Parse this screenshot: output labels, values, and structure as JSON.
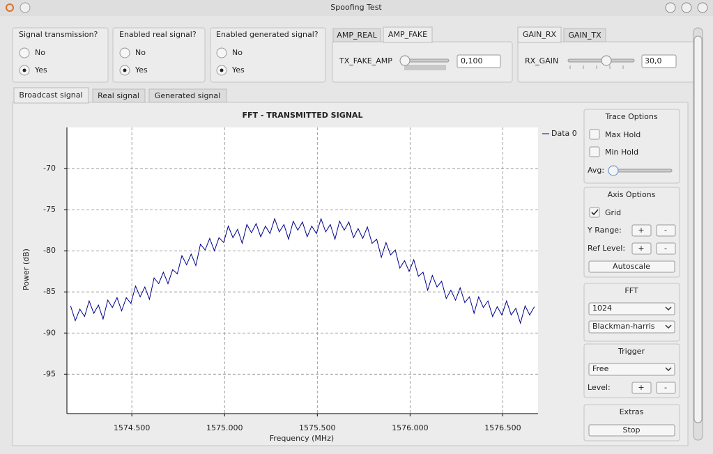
{
  "window": {
    "title": "Spoofing Test"
  },
  "groups": [
    {
      "title": "Signal transmission?",
      "options": [
        "No",
        "Yes"
      ],
      "selected": "Yes"
    },
    {
      "title": "Enabled real signal?",
      "options": [
        "No",
        "Yes"
      ],
      "selected": "Yes"
    },
    {
      "title": "Enabled generated signal?",
      "options": [
        "No",
        "Yes"
      ],
      "selected": "Yes"
    }
  ],
  "amp_tabs": {
    "tabs": [
      "AMP_REAL",
      "AMP_FAKE"
    ],
    "active": "AMP_FAKE",
    "label": "TX_FAKE_AMP",
    "value": "0,100"
  },
  "gain_tabs": {
    "tabs": [
      "GAIN_RX",
      "GAIN_TX"
    ],
    "active": "GAIN_RX",
    "label": "RX_GAIN",
    "value": "30,0"
  },
  "main_tabs": {
    "tabs": [
      "Broadcast signal",
      "Real signal",
      "Generated signal"
    ],
    "active": "Broadcast signal"
  },
  "side_panel": {
    "trace_options": {
      "title": "Trace Options",
      "max_hold": "Max Hold",
      "min_hold": "Min Hold",
      "avg": "Avg:"
    },
    "axis_options": {
      "title": "Axis Options",
      "grid": "Grid",
      "y_range": "Y Range:",
      "ref_level": "Ref Level:",
      "plus": "+",
      "minus": "-",
      "autoscale": "Autoscale"
    },
    "fft": {
      "title": "FFT",
      "size": "1024",
      "window": "Blackman-harris"
    },
    "trigger": {
      "title": "Trigger",
      "mode": "Free",
      "level": "Level:"
    },
    "extras": {
      "title": "Extras",
      "stop": "Stop"
    }
  },
  "chart_data": {
    "type": "line",
    "title": "FFT - TRANSMITTED SIGNAL",
    "x_label": "Frequency (MHz)",
    "y_label": "Power (dB)",
    "x": [
      1574.17,
      1574.195,
      1574.22,
      1574.245,
      1574.27,
      1574.295,
      1574.32,
      1574.345,
      1574.37,
      1574.395,
      1574.42,
      1574.445,
      1574.47,
      1574.495,
      1574.52,
      1574.545,
      1574.57,
      1574.595,
      1574.62,
      1574.645,
      1574.67,
      1574.695,
      1574.72,
      1574.745,
      1574.77,
      1574.795,
      1574.82,
      1574.845,
      1574.87,
      1574.895,
      1574.92,
      1574.945,
      1574.97,
      1574.995,
      1575.02,
      1575.045,
      1575.07,
      1575.095,
      1575.12,
      1575.145,
      1575.17,
      1575.195,
      1575.22,
      1575.245,
      1575.27,
      1575.295,
      1575.32,
      1575.345,
      1575.37,
      1575.395,
      1575.42,
      1575.445,
      1575.47,
      1575.495,
      1575.52,
      1575.545,
      1575.57,
      1575.595,
      1575.62,
      1575.645,
      1575.67,
      1575.695,
      1575.72,
      1575.745,
      1575.77,
      1575.795,
      1575.82,
      1575.845,
      1575.87,
      1575.895,
      1575.92,
      1575.945,
      1575.97,
      1575.995,
      1576.02,
      1576.045,
      1576.07,
      1576.095,
      1576.12,
      1576.145,
      1576.17,
      1576.195,
      1576.22,
      1576.245,
      1576.27,
      1576.295,
      1576.32,
      1576.345,
      1576.37,
      1576.395,
      1576.42,
      1576.445,
      1576.47,
      1576.495,
      1576.52,
      1576.545,
      1576.57,
      1576.595,
      1576.62,
      1576.645,
      1576.67
    ],
    "series": [
      {
        "name": "Data 0",
        "color": "#00008b",
        "values": [
          -86.7,
          -88.5,
          -87.1,
          -88.0,
          -86.1,
          -87.6,
          -86.6,
          -88.3,
          -86.0,
          -86.9,
          -85.7,
          -87.3,
          -85.7,
          -86.4,
          -84.3,
          -85.6,
          -84.4,
          -85.9,
          -83.3,
          -84.0,
          -82.6,
          -84.0,
          -82.3,
          -82.8,
          -80.6,
          -81.7,
          -80.4,
          -81.8,
          -79.2,
          -79.9,
          -78.5,
          -80.0,
          -78.4,
          -79.0,
          -77.0,
          -78.4,
          -77.4,
          -79.1,
          -76.8,
          -77.8,
          -76.7,
          -78.3,
          -77.0,
          -77.9,
          -76.1,
          -77.7,
          -76.8,
          -78.6,
          -76.4,
          -77.5,
          -76.5,
          -78.3,
          -77.0,
          -77.9,
          -76.1,
          -77.7,
          -76.8,
          -78.6,
          -76.4,
          -77.5,
          -76.5,
          -78.4,
          -77.3,
          -78.5,
          -77.1,
          -79.1,
          -78.6,
          -80.8,
          -79.0,
          -80.5,
          -79.9,
          -82.1,
          -81.2,
          -82.5,
          -81.1,
          -83.1,
          -82.6,
          -84.8,
          -83.0,
          -84.4,
          -83.7,
          -85.8,
          -84.8,
          -86.0,
          -84.5,
          -86.3,
          -85.6,
          -87.6,
          -85.6,
          -86.9,
          -86.1,
          -88.0,
          -86.8,
          -87.8,
          -86.1,
          -87.8,
          -87.0,
          -88.8,
          -86.7,
          -87.8,
          -86.8
        ]
      }
    ],
    "xlim": [
      1574.15,
      1576.69
    ],
    "ylim": [
      -99.8,
      -65.0
    ],
    "xticks": [
      {
        "value": 1574.5,
        "label": "1574.500"
      },
      {
        "value": 1575.0,
        "label": "1575.000"
      },
      {
        "value": 1575.5,
        "label": "1575.500"
      },
      {
        "value": 1576.0,
        "label": "1576.000"
      },
      {
        "value": 1576.5,
        "label": "1576.500"
      }
    ],
    "yticks": [
      -95,
      -90,
      -85,
      -80,
      -75,
      -70
    ],
    "grid": true,
    "legend": "right"
  }
}
